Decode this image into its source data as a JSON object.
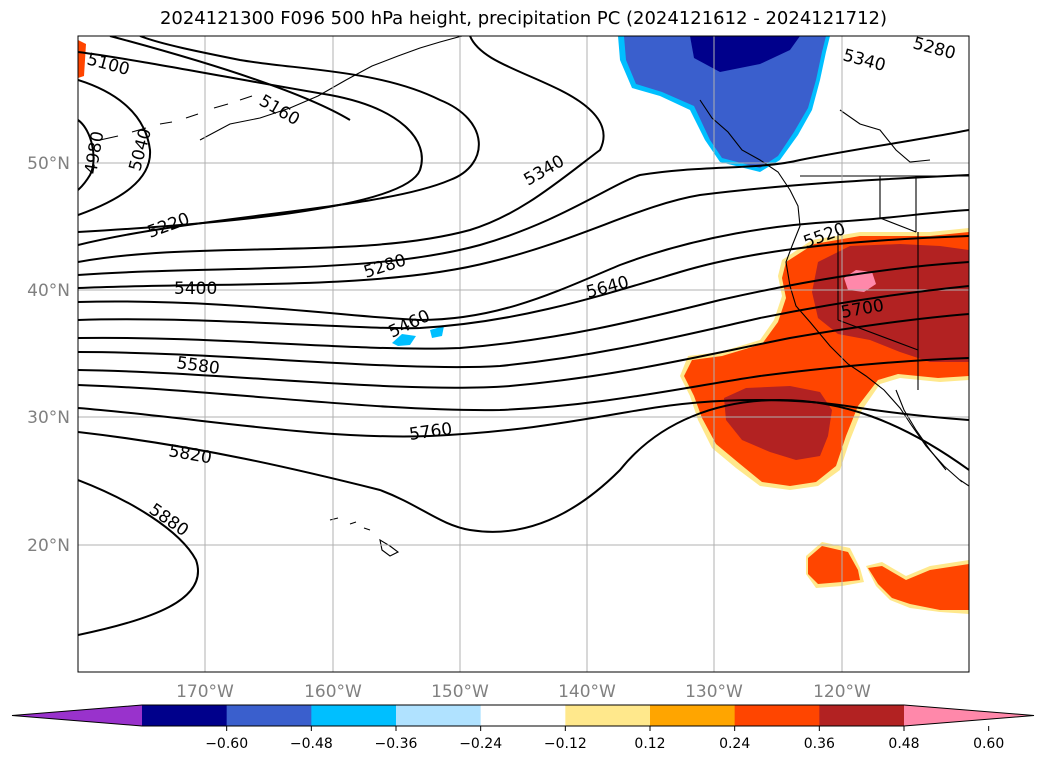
{
  "title": "2024121300 F096 500 hPa height, precipitation PC (2024121612 - 2024121712)",
  "latitude_ticks": [
    "50°N",
    "40°N",
    "30°N",
    "20°N"
  ],
  "longitude_ticks": [
    "170°W",
    "160°W",
    "150°W",
    "140°W",
    "130°W",
    "120°W"
  ],
  "contour_labels": [
    "4980",
    "5040",
    "5100",
    "5160",
    "5220",
    "5280",
    "5340",
    "5400",
    "5460",
    "5520",
    "5580",
    "5640",
    "5700",
    "5760",
    "5820",
    "5880",
    "5340",
    "5280"
  ],
  "colorbar": {
    "tick_labels": [
      "−0.60",
      "−0.48",
      "−0.36",
      "−0.24",
      "−0.12",
      "0.12",
      "0.24",
      "0.36",
      "0.48",
      "0.60"
    ],
    "colors": [
      "#9932cc",
      "#00008b",
      "#3a5fcd",
      "#00bfff",
      "#b0e2ff",
      "#ffffff",
      "#ffe88c",
      "#ffa500",
      "#ff4500",
      "#b22222",
      "#ff88aa"
    ]
  },
  "fill_colors": {
    "negative_strong": "#00008b",
    "negative_mid": "#3a5fcd",
    "negative_light": "#00bfff",
    "positive_mid": "#ff4500",
    "positive_strong": "#b22222",
    "positive_max": "#ff88aa",
    "positive_edge": "#ffe88c"
  }
}
